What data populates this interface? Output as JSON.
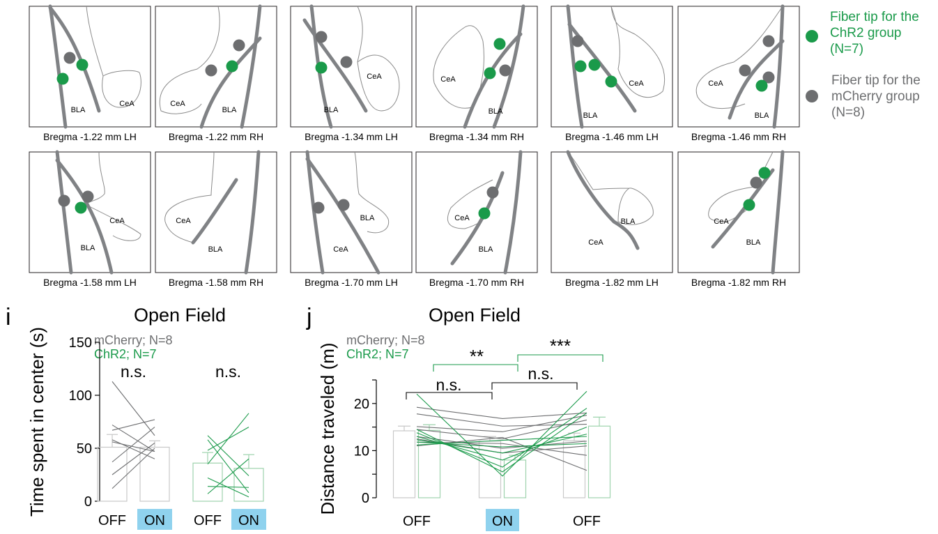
{
  "colors": {
    "chr2": "#1a9a4a",
    "mcherry": "#6d6e70",
    "on_highlight": "#8fd2ee",
    "atlas_thick": "#808285",
    "atlas_thin": "#8a8a8a"
  },
  "legend": {
    "chr2_label_lines": [
      "Fiber tip for the",
      "ChR2 group",
      "(N=7)"
    ],
    "mcherry_label_lines": [
      "Fiber tip for the",
      "mCherry group",
      "(N=8)"
    ]
  },
  "atlas_sections": [
    {
      "caption": "Bregma -1.22 mm LH",
      "region_labels": [
        "BLA",
        "CeA"
      ],
      "chr2_tips": 2,
      "mcherry_tips": 1
    },
    {
      "caption": "Bregma -1.22 mm RH",
      "region_labels": [
        "CeA",
        "BLA"
      ],
      "chr2_tips": 1,
      "mcherry_tips": 2
    },
    {
      "caption": "Bregma -1.34 mm LH",
      "region_labels": [
        "BLA",
        "CeA"
      ],
      "chr2_tips": 1,
      "mcherry_tips": 2
    },
    {
      "caption": "Bregma -1.34 mm RH",
      "region_labels": [
        "CeA",
        "BLA"
      ],
      "chr2_tips": 2,
      "mcherry_tips": 1
    },
    {
      "caption": "Bregma -1.46 mm LH",
      "region_labels": [
        "BLA",
        "CeA"
      ],
      "chr2_tips": 3,
      "mcherry_tips": 1
    },
    {
      "caption": "Bregma -1.46 mm RH",
      "region_labels": [
        "CeA",
        "BLA"
      ],
      "chr2_tips": 1,
      "mcherry_tips": 3
    },
    {
      "caption": "Bregma -1.58 mm LH",
      "region_labels": [
        "CeA",
        "BLA"
      ],
      "chr2_tips": 1,
      "mcherry_tips": 2
    },
    {
      "caption": "Bregma -1.58 mm RH",
      "region_labels": [
        "CeA",
        "BLA"
      ],
      "chr2_tips": 0,
      "mcherry_tips": 0
    },
    {
      "caption": "Bregma -1.70 mm LH",
      "region_labels": [
        "CeA",
        "BLA"
      ],
      "chr2_tips": 0,
      "mcherry_tips": 2
    },
    {
      "caption": "Bregma -1.70 mm RH",
      "region_labels": [
        "CeA",
        "BLA"
      ],
      "chr2_tips": 1,
      "mcherry_tips": 1
    },
    {
      "caption": "Bregma -1.82 mm LH",
      "region_labels": [
        "CeA",
        "BLA"
      ],
      "chr2_tips": 0,
      "mcherry_tips": 0
    },
    {
      "caption": "Bregma -1.82 mm RH",
      "region_labels": [
        "CeA",
        "BLA"
      ],
      "chr2_tips": 2,
      "mcherry_tips": 1
    }
  ],
  "chart_data": [
    {
      "panel": "i",
      "type": "bar",
      "title": "Open Field",
      "ylabel": "Time spent in center (s)",
      "ylim": [
        0,
        150
      ],
      "yticks": [
        0,
        50,
        100,
        150
      ],
      "categories": [
        "OFF",
        "ON",
        "OFF",
        "ON"
      ],
      "highlighted_categories": [
        1,
        3
      ],
      "legend_text": [
        {
          "text": "mCherry; N=8",
          "color": "#6d6e70"
        },
        {
          "text": "ChR2; N=7",
          "color": "#1a9a4a"
        }
      ],
      "series": [
        {
          "name": "mCherry",
          "values": [
            51,
            51
          ],
          "errors": [
            12,
            6
          ],
          "positions": [
            0,
            1
          ]
        },
        {
          "name": "ChR2",
          "values": [
            36,
            31
          ],
          "errors": [
            10,
            13
          ],
          "positions": [
            2,
            3
          ]
        }
      ],
      "individual_lines": {
        "mCherry": [
          [
            113,
            62
          ],
          [
            72,
            47
          ],
          [
            67,
            77
          ],
          [
            58,
            40
          ],
          [
            56,
            47
          ],
          [
            37,
            70
          ],
          [
            25,
            55
          ],
          [
            12,
            50
          ]
        ],
        "ChR2": [
          [
            62,
            24
          ],
          [
            58,
            8
          ],
          [
            48,
            70
          ],
          [
            35,
            83
          ],
          [
            22,
            4
          ],
          [
            14,
            13
          ],
          [
            7,
            40
          ]
        ]
      },
      "significance": [
        {
          "label": "n.s.",
          "over": [
            0,
            1
          ]
        },
        {
          "label": "n.s.",
          "over": [
            2,
            3
          ]
        }
      ]
    },
    {
      "panel": "j",
      "type": "bar",
      "title": "Open Field",
      "ylabel": "Distance traveled (m)",
      "ylim": [
        0,
        25
      ],
      "yticks": [
        0,
        10,
        20
      ],
      "categories": [
        "OFF",
        "ON",
        "OFF"
      ],
      "highlighted_categories": [
        1
      ],
      "legend_text": [
        {
          "text": "mCherry; N=8",
          "color": "#6d6e70"
        },
        {
          "text": "ChR2; N=7",
          "color": "#1a9a4a"
        }
      ],
      "series": [
        {
          "name": "mCherry",
          "values": [
            14.2,
            12.0,
            12.1
          ],
          "errors": [
            1.0,
            1.0,
            1.6
          ]
        },
        {
          "name": "ChR2",
          "values": [
            14.3,
            8.0,
            15.2
          ],
          "errors": [
            1.2,
            1.0,
            1.9
          ]
        }
      ],
      "individual_lines": {
        "mCherry": [
          [
            19.2,
            16.8,
            18.0
          ],
          [
            17.8,
            15.2,
            15.6
          ],
          [
            15.1,
            14.0,
            17.5
          ],
          [
            14.5,
            12.5,
            16.5
          ],
          [
            13.0,
            10.5,
            12.0
          ],
          [
            12.5,
            9.5,
            11.0
          ],
          [
            11.8,
            11.5,
            9.0
          ],
          [
            11.0,
            12.8,
            5.8
          ]
        ],
        "ChR2": [
          [
            22.0,
            4.6,
            22.6
          ],
          [
            14.5,
            5.5,
            18.0
          ],
          [
            13.8,
            6.5,
            19.0
          ],
          [
            13.0,
            8.0,
            15.0
          ],
          [
            12.3,
            9.5,
            13.5
          ],
          [
            11.8,
            10.8,
            11.5
          ],
          [
            11.2,
            12.2,
            13.0
          ]
        ]
      },
      "significance": [
        {
          "label": "n.s.",
          "over": [
            0,
            1
          ]
        },
        {
          "label": "n.s.",
          "over": [
            1,
            2
          ]
        },
        {
          "label": "**",
          "over": [
            0,
            1
          ]
        },
        {
          "label": "***",
          "over": [
            1,
            2
          ]
        }
      ]
    }
  ],
  "panel_letters": {
    "i": "i",
    "j": "j"
  }
}
